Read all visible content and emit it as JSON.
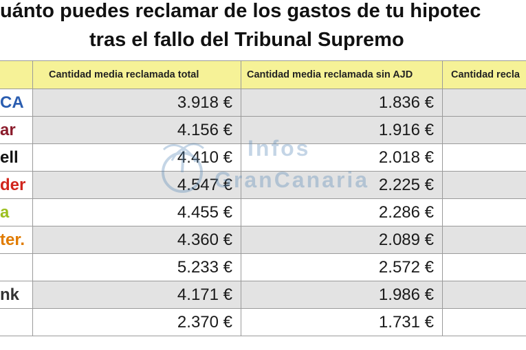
{
  "title": {
    "line1": "uánto puedes reclamar de los gastos de tu hipotec",
    "line2": "tras el fallo del Tribunal Supremo"
  },
  "table": {
    "headers": [
      "Cantidad media reclamada total",
      "Cantidad media reclamada sin AJD",
      "Cantidad recla"
    ],
    "rows": [
      {
        "bank": "CA",
        "bank_color": "#2a5db0",
        "total": "3.918 €",
        "sin_ajd": "1.836 €",
        "shade": "g"
      },
      {
        "bank": "ar",
        "bank_color": "#8b1c2c",
        "total": "4.156 €",
        "sin_ajd": "1.916 €",
        "shade": "g"
      },
      {
        "bank": "ell",
        "bank_color": "#111111",
        "total": "4.410 €",
        "sin_ajd": "2.018 €",
        "shade": "w"
      },
      {
        "bank": "der",
        "bank_color": "#d1251c",
        "total": "4.547 €",
        "sin_ajd": "2.225 €",
        "shade": "g"
      },
      {
        "bank": "a",
        "bank_color": "#9bbf1e",
        "total": "4.455 €",
        "sin_ajd": "2.286 €",
        "shade": "w"
      },
      {
        "bank": "ter.",
        "bank_color": "#e07b00",
        "total": "4.360 €",
        "sin_ajd": "2.089 €",
        "shade": "g"
      },
      {
        "bank": "",
        "bank_color": "#111111",
        "total": "5.233 €",
        "sin_ajd": "2.572 €",
        "shade": "w"
      },
      {
        "bank": "nk",
        "bank_color": "#333333",
        "total": "4.171 €",
        "sin_ajd": "1.986 €",
        "shade": "g"
      },
      {
        "bank": "",
        "bank_color": "#e05a00",
        "total": "2.370 €",
        "sin_ajd": "1.731 €",
        "shade": "w"
      }
    ]
  },
  "watermark": {
    "line1": "Infos",
    "line2": "GranCanaria"
  }
}
